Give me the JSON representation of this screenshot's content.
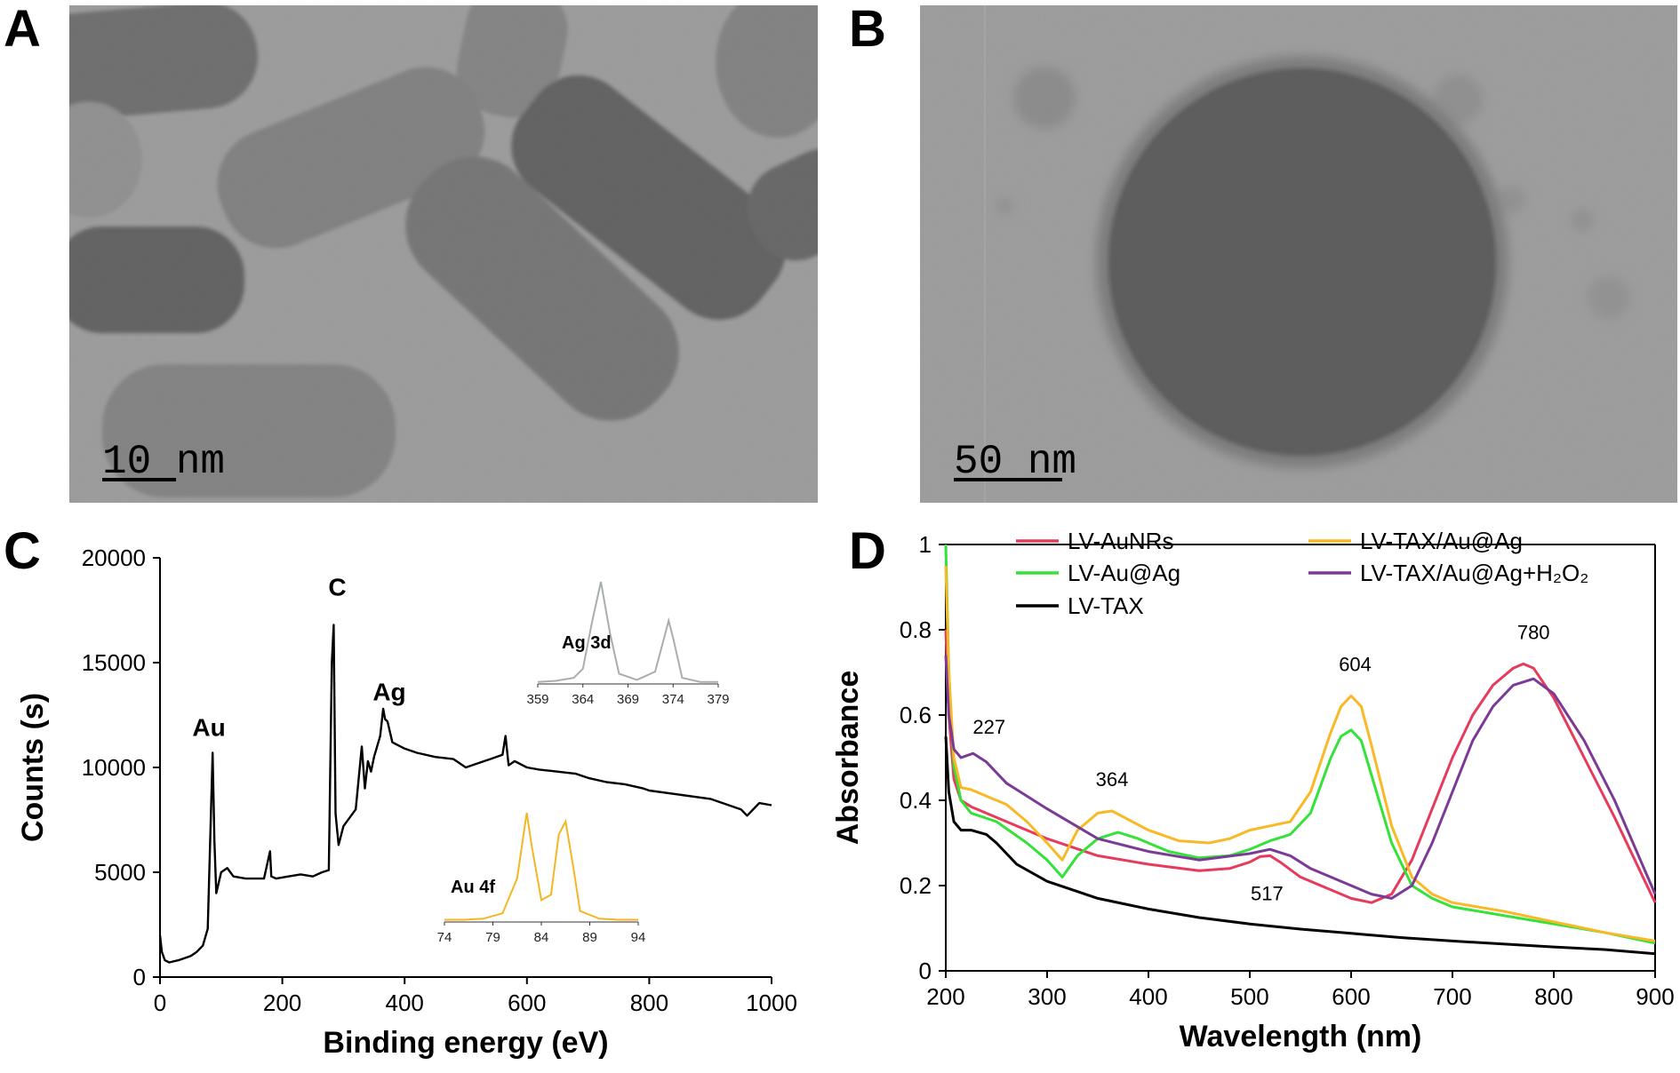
{
  "panels": {
    "a": {
      "letter": "A",
      "scale_label": "10 nm"
    },
    "b": {
      "letter": "B",
      "scale_label": "50 nm"
    },
    "c": {
      "letter": "C"
    },
    "d": {
      "letter": "D"
    }
  },
  "chart_data": [
    {
      "id": "C",
      "type": "line",
      "xlabel": "Binding energy (eV)",
      "ylabel": "Counts (s)",
      "xlim": [
        0,
        1000
      ],
      "ylim": [
        0,
        20000
      ],
      "xticks": [
        0,
        200,
        400,
        600,
        800,
        1000
      ],
      "yticks": [
        0,
        5000,
        10000,
        15000,
        20000
      ],
      "grid": false,
      "series": [
        {
          "color": "#000000",
          "x": [
            0,
            3,
            8,
            15,
            30,
            50,
            60,
            70,
            78,
            83,
            86,
            89,
            92,
            100,
            110,
            120,
            140,
            170,
            180,
            182,
            190,
            210,
            230,
            250,
            265,
            276,
            281,
            284,
            287,
            292,
            300,
            320,
            330,
            335,
            340,
            345,
            350,
            360,
            365,
            368,
            372,
            380,
            400,
            420,
            450,
            480,
            500,
            520,
            540,
            560,
            565,
            570,
            580,
            600,
            620,
            650,
            680,
            700,
            730,
            760,
            790,
            800,
            850,
            900,
            950,
            960,
            980,
            1000
          ],
          "y": [
            2000,
            1200,
            800,
            700,
            800,
            1000,
            1200,
            1500,
            2300,
            7500,
            10700,
            6500,
            4000,
            5000,
            5200,
            4800,
            4700,
            4700,
            6000,
            4800,
            4700,
            4800,
            4900,
            4800,
            5000,
            5100,
            15000,
            16800,
            7800,
            6300,
            7200,
            8000,
            11000,
            9000,
            10300,
            9800,
            10500,
            11500,
            12800,
            12300,
            12200,
            11200,
            10900,
            10700,
            10500,
            10400,
            10000,
            10200,
            10400,
            10600,
            11500,
            10100,
            10300,
            10000,
            9900,
            9800,
            9700,
            9500,
            9300,
            9200,
            9000,
            8900,
            8700,
            8500,
            8000,
            7700,
            8300,
            8200
          ]
        }
      ],
      "annotations": [
        {
          "text": "Au",
          "x": 80,
          "y": 11500
        },
        {
          "text": "C",
          "x": 290,
          "y": 18200
        },
        {
          "text": "Ag",
          "x": 375,
          "y": 13200
        }
      ],
      "insets": [
        {
          "title": "Ag 3d",
          "color": "#a8aeb0",
          "xlim": [
            359,
            379
          ],
          "xticks": [
            359,
            364,
            369,
            374,
            379
          ],
          "x": [
            359,
            361,
            363,
            364,
            365,
            366,
            367,
            368,
            370,
            372,
            373,
            373.5,
            374,
            375,
            377,
            379
          ],
          "y": [
            0.02,
            0.03,
            0.06,
            0.15,
            0.6,
            1.0,
            0.5,
            0.1,
            0.04,
            0.12,
            0.45,
            0.62,
            0.45,
            0.06,
            0.02,
            0.02
          ]
        },
        {
          "title": "Au 4f",
          "color": "#f2b722",
          "xlim": [
            74,
            94
          ],
          "xticks": [
            74,
            79,
            84,
            89,
            94
          ],
          "x": [
            74,
            76,
            78,
            80,
            81.5,
            82.5,
            83,
            84,
            85,
            85.8,
            86.5,
            87.3,
            88,
            90,
            92,
            94
          ],
          "y": [
            0.02,
            0.02,
            0.03,
            0.08,
            0.4,
            1.0,
            0.7,
            0.2,
            0.25,
            0.8,
            0.92,
            0.5,
            0.1,
            0.03,
            0.02,
            0.02
          ]
        }
      ]
    },
    {
      "id": "D",
      "type": "line",
      "xlabel": "Wavelength (nm)",
      "ylabel": "Absorbance",
      "xlim": [
        200,
        900
      ],
      "ylim": [
        0,
        1
      ],
      "xticks": [
        200,
        300,
        400,
        500,
        600,
        700,
        800,
        900
      ],
      "yticks": [
        0,
        0.2,
        0.4,
        0.6,
        0.8,
        1
      ],
      "ytick_labels": [
        "0",
        "0.2",
        "0.4",
        "0.6",
        "0.8",
        "1"
      ],
      "grid": false,
      "legend_position": "top",
      "series": [
        {
          "name": "LV-AuNRs",
          "color": "#e63b5c",
          "x": [
            200,
            203,
            208,
            215,
            225,
            250,
            300,
            350,
            400,
            450,
            480,
            500,
            510,
            520,
            530,
            550,
            580,
            600,
            620,
            640,
            660,
            680,
            700,
            720,
            740,
            760,
            770,
            780,
            800,
            830,
            860,
            900
          ],
          "y": [
            0.8,
            0.6,
            0.45,
            0.4,
            0.385,
            0.36,
            0.31,
            0.27,
            0.25,
            0.235,
            0.24,
            0.255,
            0.268,
            0.27,
            0.255,
            0.22,
            0.19,
            0.17,
            0.16,
            0.18,
            0.26,
            0.38,
            0.5,
            0.6,
            0.67,
            0.71,
            0.72,
            0.71,
            0.64,
            0.5,
            0.36,
            0.16
          ]
        },
        {
          "name": "LV-Au@Ag",
          "color": "#34e23a",
          "x": [
            200,
            203,
            208,
            215,
            225,
            250,
            280,
            300,
            315,
            330,
            350,
            370,
            390,
            420,
            450,
            480,
            500,
            520,
            540,
            560,
            580,
            590,
            600,
            610,
            620,
            640,
            660,
            680,
            700,
            750,
            800,
            850,
            900
          ],
          "y": [
            1.0,
            0.7,
            0.48,
            0.4,
            0.37,
            0.35,
            0.3,
            0.26,
            0.22,
            0.27,
            0.31,
            0.325,
            0.31,
            0.28,
            0.265,
            0.27,
            0.285,
            0.305,
            0.32,
            0.37,
            0.5,
            0.55,
            0.565,
            0.54,
            0.46,
            0.3,
            0.2,
            0.17,
            0.15,
            0.13,
            0.11,
            0.09,
            0.065
          ]
        },
        {
          "name": "LV-TAX",
          "color": "#000000",
          "x": [
            200,
            203,
            208,
            215,
            225,
            240,
            250,
            270,
            300,
            350,
            400,
            450,
            500,
            550,
            600,
            650,
            700,
            750,
            800,
            850,
            900
          ],
          "y": [
            0.55,
            0.42,
            0.35,
            0.33,
            0.33,
            0.32,
            0.3,
            0.25,
            0.21,
            0.17,
            0.145,
            0.125,
            0.11,
            0.098,
            0.088,
            0.078,
            0.07,
            0.063,
            0.056,
            0.05,
            0.04
          ]
        },
        {
          "name": "LV-TAX/Au@Ag",
          "color": "#f9b826",
          "x": [
            200,
            203,
            208,
            215,
            225,
            240,
            260,
            280,
            300,
            315,
            330,
            350,
            364,
            380,
            400,
            430,
            460,
            480,
            500,
            520,
            540,
            560,
            580,
            590,
            600,
            610,
            620,
            640,
            660,
            680,
            700,
            750,
            800,
            850,
            900
          ],
          "y": [
            0.95,
            0.7,
            0.5,
            0.43,
            0.425,
            0.41,
            0.39,
            0.35,
            0.3,
            0.26,
            0.33,
            0.37,
            0.375,
            0.355,
            0.33,
            0.305,
            0.3,
            0.31,
            0.33,
            0.34,
            0.35,
            0.42,
            0.56,
            0.62,
            0.645,
            0.62,
            0.53,
            0.34,
            0.22,
            0.18,
            0.16,
            0.14,
            0.115,
            0.09,
            0.07
          ]
        },
        {
          "name": "LV-TAX/Au@Ag+H₂O₂",
          "color": "#7b3a96",
          "x": [
            200,
            203,
            208,
            215,
            227,
            240,
            260,
            300,
            350,
            400,
            450,
            500,
            520,
            540,
            560,
            580,
            600,
            620,
            640,
            660,
            680,
            700,
            720,
            740,
            760,
            780,
            800,
            830,
            860,
            900
          ],
          "y": [
            0.74,
            0.6,
            0.52,
            0.5,
            0.51,
            0.49,
            0.44,
            0.38,
            0.31,
            0.28,
            0.26,
            0.275,
            0.285,
            0.27,
            0.24,
            0.22,
            0.2,
            0.18,
            0.17,
            0.2,
            0.3,
            0.42,
            0.54,
            0.62,
            0.67,
            0.685,
            0.65,
            0.54,
            0.4,
            0.18
          ]
        }
      ],
      "annotations": [
        {
          "text": "227",
          "x": 227,
          "y": 0.51
        },
        {
          "text": "364",
          "x": 364,
          "y": 0.375
        },
        {
          "text": "517",
          "x": 517,
          "y": 0.27
        },
        {
          "text": "604",
          "x": 604,
          "y": 0.645
        },
        {
          "text": "780",
          "x": 780,
          "y": 0.72
        }
      ]
    }
  ]
}
